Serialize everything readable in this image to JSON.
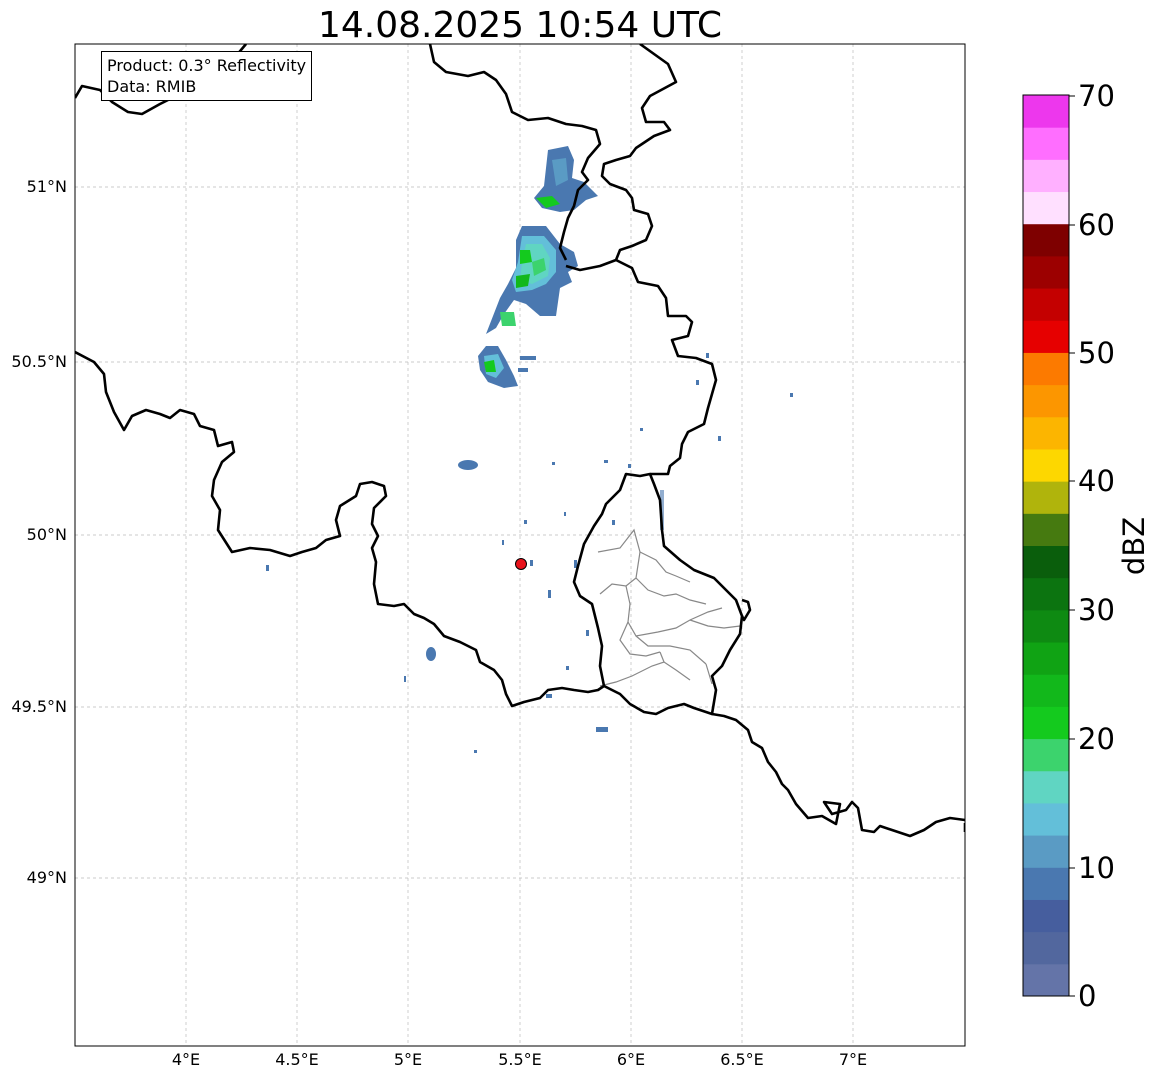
{
  "title": "14.08.2025 10:54 UTC",
  "info_box": {
    "product": "Product: 0.3° Reflectivity",
    "data": "Data: RMIB"
  },
  "map": {
    "lon_ticks": [
      "4°E",
      "4.5°E",
      "5°E",
      "5.5°E",
      "6°E",
      "6.5°E",
      "7°E"
    ],
    "lat_ticks": [
      "51°N",
      "50.5°N",
      "50°N",
      "49.5°N",
      "49°N"
    ],
    "radar_site": {
      "lon": 5.505,
      "lat": 49.914,
      "color": "#e8121b"
    }
  },
  "colorbar": {
    "label": "dBZ",
    "tick_labels": [
      "0",
      "10",
      "20",
      "30",
      "40",
      "50",
      "60",
      "70"
    ],
    "colors": [
      "#6474a8",
      "#52679e",
      "#465e9e",
      "#4a78b0",
      "#5a9bc4",
      "#63bfd9",
      "#60d5c2",
      "#3cd36d",
      "#14ca1e",
      "#12b81b",
      "#10a314",
      "#0e8a12",
      "#0c7410",
      "#0a5e0c",
      "#467a10",
      "#b0b40c",
      "#fdd700",
      "#fcb500",
      "#fc9600",
      "#fc7a00",
      "#e60000",
      "#c40000",
      "#9c0000",
      "#7e0000",
      "#ffe0ff",
      "#ffb0ff",
      "#ff6eff",
      "#ed37ed"
    ]
  }
}
